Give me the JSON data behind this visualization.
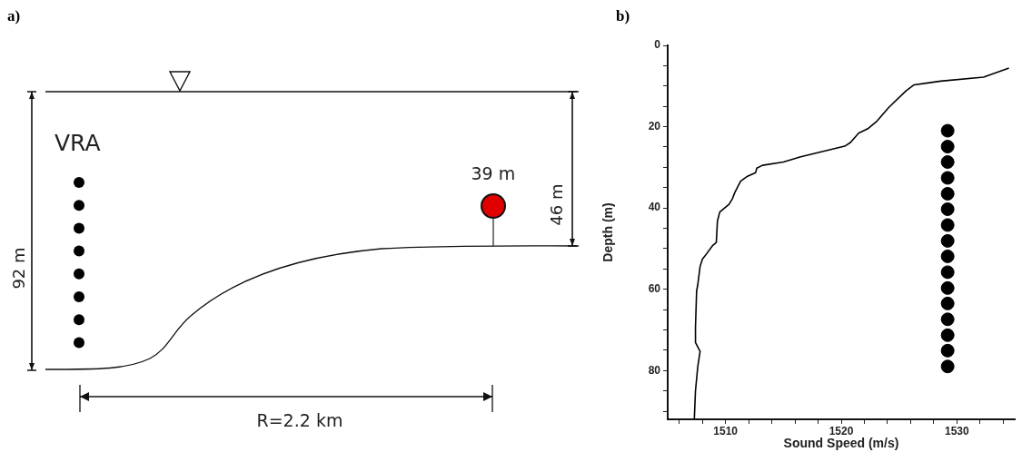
{
  "chart_data": [
    {
      "type": "other",
      "title": "a)",
      "annotations": [
        "VRA",
        "92 m",
        "46 m",
        "39 m",
        "R=2.2 km"
      ]
    },
    {
      "type": "line",
      "title": "b)",
      "xlabel": "Sound Speed (m/s)",
      "ylabel": "Depth (m)",
      "xlim": [
        1505,
        1535
      ],
      "ylim": [
        92,
        0
      ],
      "grid": false,
      "legend": false,
      "xticks": [
        {
          "value": 1506,
          "label": null
        },
        {
          "value": 1508,
          "label": null
        },
        1510,
        {
          "value": 1512,
          "label": null
        },
        {
          "value": 1514,
          "label": null
        },
        {
          "value": 1516,
          "label": null
        },
        {
          "value": 1518,
          "label": null
        },
        1520,
        {
          "value": 1522,
          "label": null
        },
        {
          "value": 1524,
          "label": null
        },
        {
          "value": 1526,
          "label": null
        },
        {
          "value": 1528,
          "label": null
        },
        1530,
        {
          "value": 1532,
          "label": null
        },
        {
          "value": 1534,
          "label": null
        }
      ],
      "yticks": [
        0,
        {
          "value": 5,
          "label": null
        },
        {
          "value": 10,
          "label": null
        },
        {
          "value": 15,
          "label": null
        },
        20,
        {
          "value": 25,
          "label": null
        },
        {
          "value": 30,
          "label": null
        },
        {
          "value": 35,
          "label": null
        },
        40,
        {
          "value": 45,
          "label": null
        },
        {
          "value": 50,
          "label": null
        },
        {
          "value": 55,
          "label": null
        },
        60,
        {
          "value": 65,
          "label": null
        },
        {
          "value": 70,
          "label": null
        },
        {
          "value": 75,
          "label": null
        },
        80,
        {
          "value": 85,
          "label": null
        },
        {
          "value": 90,
          "label": null
        }
      ],
      "series": [
        {
          "type": "line",
          "color": "#000000",
          "marker": "none",
          "line_style": "solid",
          "x": [
            1534.5,
            1532.3,
            1528.6,
            1526.3,
            1525.6,
            1524.1,
            1523.1,
            1522.3,
            1521.5,
            1520.8,
            1520.3,
            1516.5,
            1515.0,
            1513.2,
            1512.7,
            1512.6,
            1511.9,
            1511.3,
            1510.8,
            1510.6,
            1510.3,
            1509.5,
            1509.3,
            1509.2,
            1508.9,
            1508.3,
            1508.0,
            1507.8,
            1507.6,
            1507.5,
            1507.4,
            1507.4,
            1507.8,
            1507.6,
            1507.4,
            1507.3
          ],
          "values": [
            5.6,
            7.8,
            8.8,
            9.7,
            11.2,
            15.3,
            18.6,
            20.5,
            21.6,
            23.9,
            24.8,
            27.4,
            28.7,
            29.5,
            30.2,
            31.3,
            32.2,
            33.4,
            36.2,
            37.7,
            39.1,
            41.0,
            43.2,
            48.5,
            49.2,
            51.5,
            52.6,
            54.4,
            58.9,
            60.4,
            69.4,
            73.1,
            75.3,
            79.0,
            85.0,
            92.0
          ]
        },
        {
          "type": "scatter",
          "color": "#000000",
          "marker": "circle",
          "x": [
            1529.2,
            1529.2,
            1529.2,
            1529.2,
            1529.2,
            1529.2,
            1529.2,
            1529.2,
            1529.2,
            1529.2,
            1529.2,
            1529.2,
            1529.2,
            1529.2,
            1529.2,
            1529.2
          ],
          "values": [
            21.0,
            24.9,
            28.7,
            32.6,
            36.5,
            40.3,
            44.2,
            48.1,
            51.9,
            55.8,
            59.7,
            63.5,
            67.4,
            71.3,
            75.1,
            79.0
          ]
        }
      ]
    }
  ]
}
